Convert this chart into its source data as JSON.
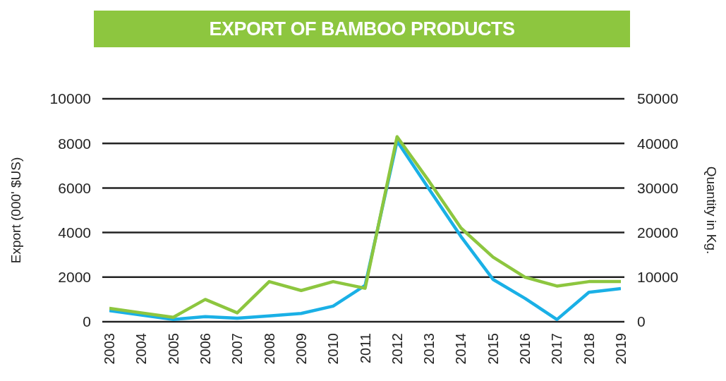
{
  "chart_data": {
    "type": "line",
    "title": "EXPORT OF BAMBOO PRODUCTS",
    "categories": [
      "2003",
      "2004",
      "2005",
      "2006",
      "2007",
      "2008",
      "2009",
      "2010",
      "2011",
      "2012",
      "2013",
      "2014",
      "2015",
      "2016",
      "2017",
      "2018",
      "2019"
    ],
    "series": [
      {
        "color": "#1ab0e6",
        "values": [
          500,
          300,
          100,
          230,
          160,
          260,
          370,
          700,
          1630,
          8100,
          5950,
          3820,
          1900,
          1050,
          100,
          1320,
          1490
        ]
      },
      {
        "color": "#8dc63f",
        "axis": "y2",
        "values": [
          3000,
          2000,
          1000,
          5000,
          2000,
          9000,
          7000,
          9000,
          7500,
          41500,
          31500,
          21000,
          14500,
          10000,
          8000,
          9000,
          9000
        ]
      }
    ],
    "ylabel": "Export (000' $US)",
    "y2label": "Quantity in Kg.",
    "ylim": [
      0,
      10000
    ],
    "yticks": [
      0,
      2000,
      4000,
      6000,
      8000,
      10000
    ],
    "y2lim": [
      0,
      50000
    ],
    "y2ticks": [
      0,
      10000,
      20000,
      30000,
      40000,
      50000
    ],
    "grid": "y",
    "marker": "none",
    "line_style": "solid"
  }
}
